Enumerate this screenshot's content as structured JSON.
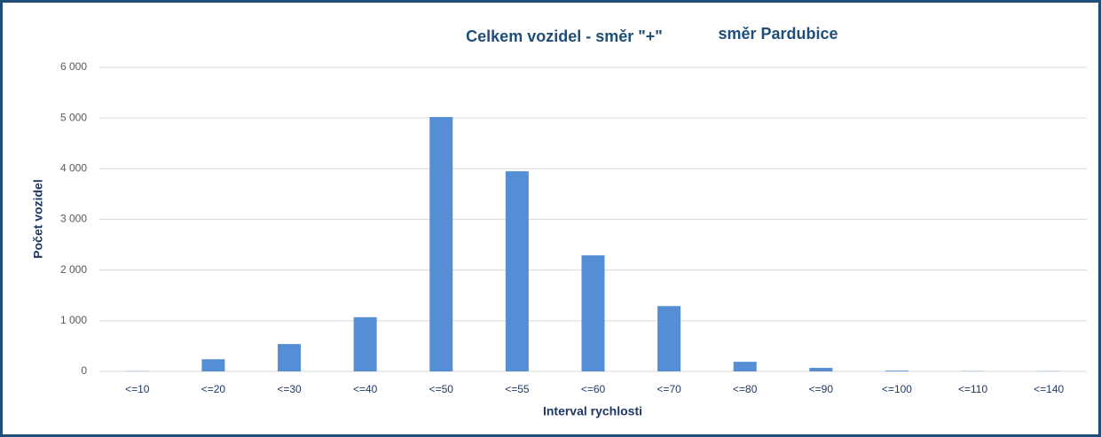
{
  "chart_data": {
    "type": "bar",
    "title": "Celkem vozidel - směr \"+\"",
    "annotation": "směr Pardubice",
    "x_label": "Interval rychlosti",
    "y_label": "Počet vozidel",
    "categories": [
      "<=10",
      "<=20",
      "<=30",
      "<=40",
      "<=50",
      "<=55",
      "<=60",
      "<=70",
      "<=80",
      "<=90",
      "<=100",
      "<=110",
      "<=140"
    ],
    "values": [
      5,
      240,
      540,
      1070,
      5020,
      3950,
      2290,
      1290,
      190,
      70,
      15,
      5,
      5
    ],
    "color": "#558ed5",
    "ylim": [
      0,
      6000
    ],
    "yticks": [
      0,
      {
        "value": 1000,
        "label": "1 000"
      },
      {
        "value": 2000,
        "label": "2 000"
      },
      {
        "value": 3000,
        "label": "3 000"
      },
      {
        "value": 4000,
        "label": "4 000"
      },
      {
        "value": 5000,
        "label": "5 000"
      },
      {
        "value": 6000,
        "label": "6 000"
      }
    ],
    "grid": true
  }
}
